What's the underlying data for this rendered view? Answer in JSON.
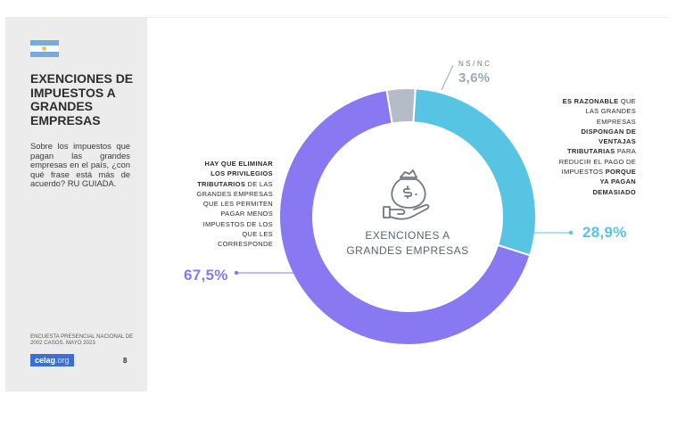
{
  "sidebar": {
    "title": "EXENCIONES DE IMPUESTOS A GRANDES EMPRESAS",
    "question": "Sobre los impuestos que pagan las grandes empresas en el país, ¿con qué frase está más de acuerdo? RU GUIADA.",
    "source": "ENCUESTA PRESENCIAL NACIONAL DE 2002 CASOS. MAYO 2023",
    "logo_main": "celag",
    "logo_suffix": ".org",
    "page_number": "8"
  },
  "colors": {
    "eliminar": "#8878f2",
    "razonable": "#56c4e2",
    "nsnc": "#b4bcc7",
    "flag_blue": "#74acdf",
    "flag_sun": "#f6c341"
  },
  "icon": "money-bag-in-hand-icon",
  "chart_data": {
    "type": "pie",
    "donut": true,
    "center_label": [
      "EXENCIONES A",
      "GRANDES EMPRESAS"
    ],
    "slices": [
      {
        "key": "nsnc",
        "label": "NS/NC",
        "value": 3.6,
        "value_label": "3,6%",
        "color": "#b4bcc7"
      },
      {
        "key": "razonable",
        "label_lines": [
          [
            {
              "t": "ES RAZONABLE",
              "b": true
            },
            {
              "t": " QUE",
              "b": false
            }
          ],
          [
            {
              "t": "LAS GRANDES",
              "b": false
            }
          ],
          [
            {
              "t": "EMPRESAS",
              "b": false
            }
          ],
          [
            {
              "t": "DISPONGAN DE",
              "b": true
            }
          ],
          [
            {
              "t": "VENTAJAS",
              "b": true
            }
          ],
          [
            {
              "t": "TRIBUTARIAS",
              "b": true
            },
            {
              "t": " PARA",
              "b": false
            }
          ],
          [
            {
              "t": "REDUCIR EL PAGO DE",
              "b": false
            }
          ],
          [
            {
              "t": "IMPUESTOS ",
              "b": false
            },
            {
              "t": "PORQUE",
              "b": true
            }
          ],
          [
            {
              "t": "YA PAGAN",
              "b": true
            }
          ],
          [
            {
              "t": "DEMASIADO",
              "b": true
            }
          ]
        ],
        "value": 28.9,
        "value_label": "28,9%",
        "color": "#56c4e2"
      },
      {
        "key": "eliminar",
        "label_lines": [
          [
            {
              "t": "HAY QUE ELIMINAR",
              "b": true
            }
          ],
          [
            {
              "t": "LOS PRIVILEGIOS",
              "b": true
            }
          ],
          [
            {
              "t": "TRIBUTARIOS",
              "b": true
            },
            {
              "t": " DE LAS",
              "b": false
            }
          ],
          [
            {
              "t": "GRANDES EMPRESAS",
              "b": false
            }
          ],
          [
            {
              "t": "QUE LES PERMITEN",
              "b": false
            }
          ],
          [
            {
              "t": "PAGAR MENOS",
              "b": false
            }
          ],
          [
            {
              "t": "IMPUESTOS DE LOS",
              "b": false
            }
          ],
          [
            {
              "t": "QUE LES",
              "b": false
            }
          ],
          [
            {
              "t": "CORRESPONDE",
              "b": false
            }
          ]
        ],
        "value": 67.5,
        "value_label": "67,5%",
        "color": "#8878f2"
      }
    ]
  }
}
